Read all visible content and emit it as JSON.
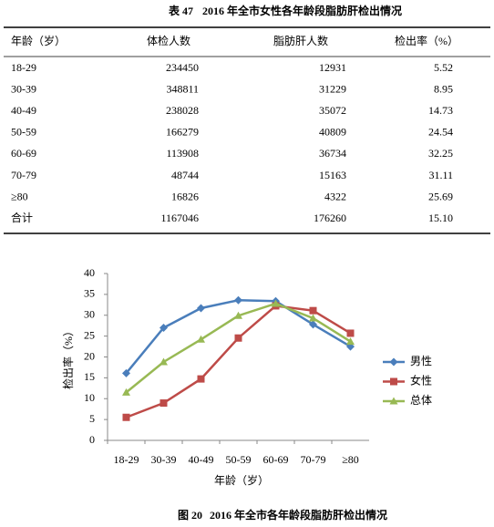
{
  "table": {
    "label": "表 47",
    "title": "2016 年全市女性各年龄段脂肪肝检出情况",
    "header": [
      "年龄（岁）",
      "体检人数",
      "脂肪肝人数",
      "检出率（%）"
    ],
    "rows": [
      [
        "18-29",
        "234450",
        "12931",
        "5.52"
      ],
      [
        "30-39",
        "348811",
        "31229",
        "8.95"
      ],
      [
        "40-49",
        "238028",
        "35072",
        "14.73"
      ],
      [
        "50-59",
        "166279",
        "40809",
        "24.54"
      ],
      [
        "60-69",
        "113908",
        "36734",
        "32.25"
      ],
      [
        "70-79",
        "48744",
        "15163",
        "31.11"
      ],
      [
        "≥80",
        "16826",
        "4322",
        "25.69"
      ],
      [
        "合计",
        "1167046",
        "176260",
        "15.10"
      ]
    ]
  },
  "chart_data": {
    "type": "line",
    "x_label": "年龄（岁）",
    "y_label": "检出率（%）",
    "categories": [
      "18-29",
      "30-39",
      "40-49",
      "50-59",
      "60-69",
      "70-79",
      "≥80"
    ],
    "ylim": [
      0,
      40
    ],
    "yticks": [
      0,
      5,
      10,
      15,
      20,
      25,
      30,
      35,
      40
    ],
    "grid": false,
    "legend": "right",
    "series": [
      {
        "name": "男性",
        "color": "#4a7ebb",
        "marker": "diamond",
        "values": [
          16.1,
          27.0,
          31.7,
          33.6,
          33.4,
          27.8,
          22.5
        ]
      },
      {
        "name": "女性",
        "color": "#be4b48",
        "marker": "square",
        "values": [
          5.52,
          8.95,
          14.73,
          24.54,
          32.25,
          31.11,
          25.69
        ]
      },
      {
        "name": "总体",
        "color": "#98b954",
        "marker": "triangle",
        "values": [
          11.5,
          18.8,
          24.2,
          29.9,
          32.8,
          29.3,
          23.7
        ]
      }
    ]
  },
  "figure": {
    "label": "图 20",
    "caption": "2016 年全市各年龄段脂肪肝检出情况"
  }
}
